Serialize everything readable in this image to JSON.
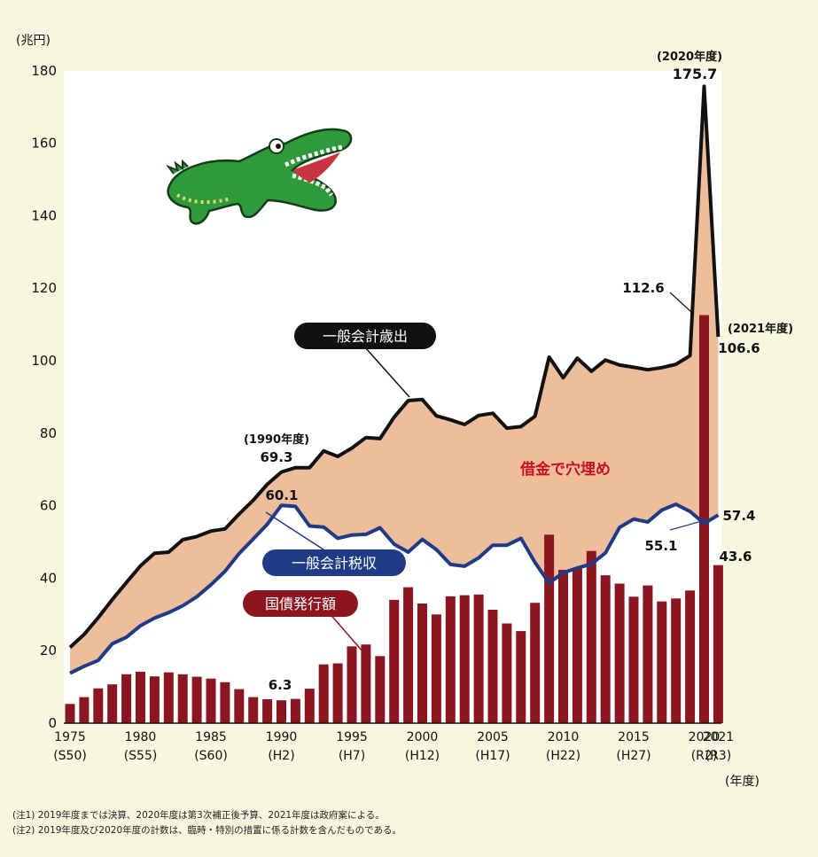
{
  "chart_data": {
    "type": "bar+line+area",
    "unit_label": "(兆円)",
    "x_unit_label": "(年度)",
    "ylim": [
      0,
      180
    ],
    "yticks": [
      0,
      20,
      40,
      60,
      80,
      100,
      120,
      140,
      160,
      180
    ],
    "x": [
      1975,
      1976,
      1977,
      1978,
      1979,
      1980,
      1981,
      1982,
      1983,
      1984,
      1985,
      1986,
      1987,
      1988,
      1989,
      1990,
      1991,
      1992,
      1993,
      1994,
      1995,
      1996,
      1997,
      1998,
      1999,
      2000,
      2001,
      2002,
      2003,
      2004,
      2005,
      2006,
      2007,
      2008,
      2009,
      2010,
      2011,
      2012,
      2013,
      2014,
      2015,
      2016,
      2017,
      2018,
      2019,
      2020,
      2021
    ],
    "xtick_labels": [
      {
        "year": 1975,
        "line1": "1975",
        "line2": "(S50)"
      },
      {
        "year": 1980,
        "line1": "1980",
        "line2": "(S55)"
      },
      {
        "year": 1985,
        "line1": "1985",
        "line2": "(S60)"
      },
      {
        "year": 1990,
        "line1": "1990",
        "line2": "(H2)"
      },
      {
        "year": 1995,
        "line1": "1995",
        "line2": "(H7)"
      },
      {
        "year": 2000,
        "line1": "2000",
        "line2": "(H12)"
      },
      {
        "year": 2005,
        "line1": "2005",
        "line2": "(H17)"
      },
      {
        "year": 2010,
        "line1": "2010",
        "line2": "(H22)"
      },
      {
        "year": 2015,
        "line1": "2015",
        "line2": "(H27)"
      },
      {
        "year": 2020,
        "line1": "2020",
        "line2": "(R2)"
      },
      {
        "year": 2021,
        "line1": "2021",
        "line2": "(R3)"
      }
    ],
    "series": [
      {
        "name": "一般会計歳出",
        "type": "line",
        "color": "#111111",
        "values": [
          20.9,
          24.5,
          29.1,
          34.1,
          38.8,
          43.4,
          46.9,
          47.2,
          50.6,
          51.5,
          53.0,
          53.6,
          57.7,
          61.5,
          65.9,
          69.3,
          70.5,
          70.5,
          75.1,
          73.6,
          75.9,
          78.8,
          78.5,
          84.4,
          89.0,
          89.3,
          84.8,
          83.7,
          82.4,
          84.9,
          85.5,
          81.4,
          81.8,
          84.7,
          101.0,
          95.3,
          100.7,
          97.1,
          100.2,
          98.8,
          98.2,
          97.5,
          98.1,
          99.0,
          101.4,
          175.7,
          106.6
        ]
      },
      {
        "name": "一般会計税収",
        "type": "line",
        "color": "#1f3b86",
        "values": [
          13.8,
          15.7,
          17.3,
          21.9,
          23.7,
          26.9,
          29.0,
          30.5,
          32.4,
          34.9,
          38.2,
          41.9,
          46.8,
          50.8,
          54.9,
          60.1,
          59.8,
          54.4,
          54.1,
          51.0,
          51.9,
          52.1,
          53.9,
          49.4,
          47.2,
          50.7,
          47.9,
          43.8,
          43.3,
          45.6,
          49.1,
          49.1,
          51.0,
          44.3,
          38.7,
          41.5,
          42.8,
          43.9,
          47.0,
          54.0,
          56.3,
          55.5,
          58.8,
          60.4,
          58.4,
          55.1,
          57.4
        ]
      },
      {
        "name": "国債発行額",
        "type": "bar",
        "color": "#8c1620",
        "values": [
          5.3,
          7.2,
          9.6,
          10.7,
          13.5,
          14.2,
          12.9,
          14.0,
          13.5,
          12.8,
          12.3,
          11.3,
          9.4,
          7.2,
          6.6,
          6.3,
          6.7,
          9.5,
          16.2,
          16.5,
          21.2,
          21.7,
          18.5,
          34.0,
          37.5,
          33.0,
          30.0,
          35.0,
          35.3,
          35.5,
          31.3,
          27.5,
          25.4,
          33.2,
          52.0,
          42.3,
          42.8,
          47.5,
          40.8,
          38.5,
          34.9,
          38.0,
          33.6,
          34.4,
          36.6,
          112.6,
          43.6
        ]
      }
    ],
    "fill_between": {
      "upper": "一般会計歳出",
      "lower": "一般会計税収",
      "color": "#eebd9c"
    },
    "labels": {
      "spending": "一般会計歳出",
      "tax": "一般会計税収",
      "bonds": "国債発行額",
      "gap": "借金で穴埋め"
    },
    "annotations": {
      "y1990_year": "(1990年度)",
      "y1990_spend": "69.3",
      "y1990_tax": "60.1",
      "y1990_bond": "6.3",
      "y2020_year": "(2020年度)",
      "y2020_spend": "175.7",
      "y2020_bond": "112.6",
      "y2021_year": "(2021年度)",
      "y2021_spend": "106.6",
      "y2020_tax": "55.1",
      "y2021_tax": "57.4",
      "y2021_bond": "43.6"
    }
  },
  "notes": [
    "(注1) 2019年度までは決算、2020年度は第3次補正後予算、2021年度は政府案による。",
    "(注2) 2019年度及び2020年度の計数は、臨時・特別の措置に係る計数を含んだものである。"
  ],
  "illustration": {
    "name": "crocodile-illustration",
    "color": "#2f9a3a"
  }
}
